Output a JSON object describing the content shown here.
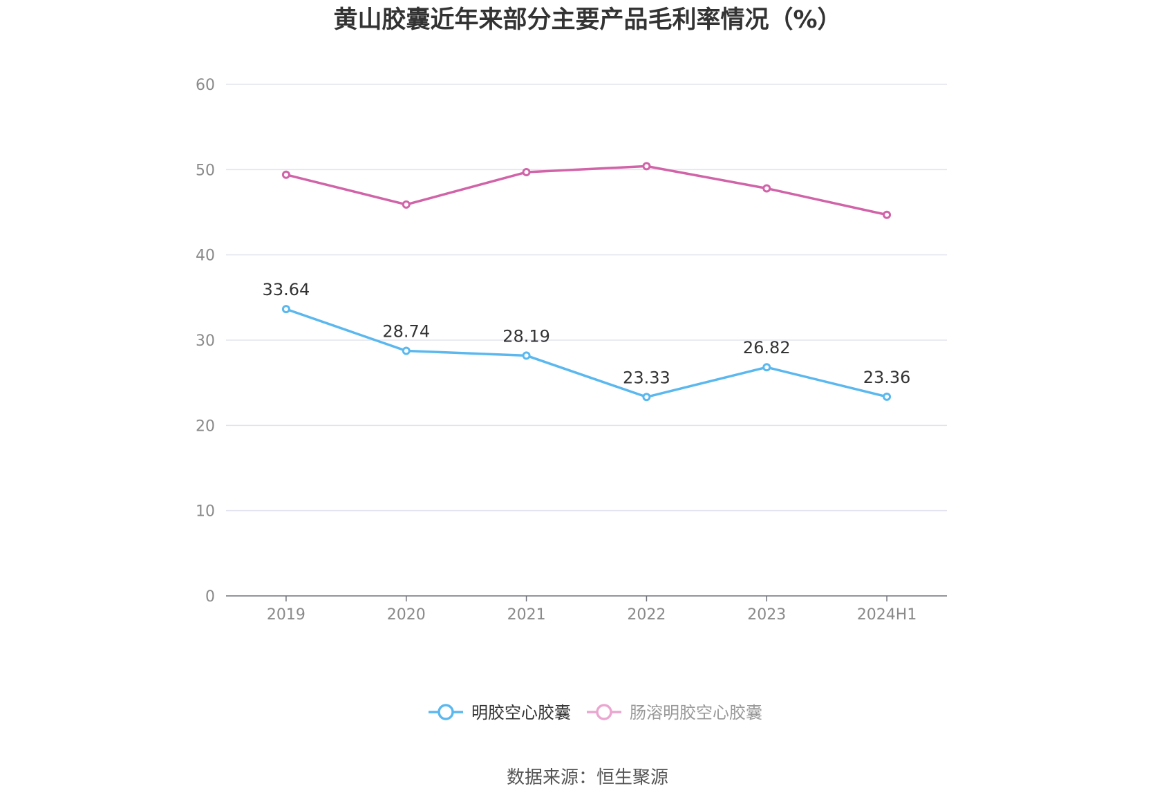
{
  "chart_data": {
    "type": "line",
    "title": "黄山胶囊近年来部分主要产品毛利率情况（%）",
    "categories": [
      "2019",
      "2020",
      "2021",
      "2022",
      "2023",
      "2024H1"
    ],
    "ylim": [
      0,
      60
    ],
    "yticks": [
      0,
      10,
      20,
      30,
      40,
      50,
      60
    ],
    "grid": true,
    "legend_position": "bottom-center",
    "series": [
      {
        "name": "明胶空心胶囊",
        "color": "#5ab8ef",
        "values": [
          33.64,
          28.74,
          28.19,
          23.33,
          26.82,
          23.36
        ],
        "show_labels": true,
        "active": true
      },
      {
        "name": "肠溶明胶空心胶囊",
        "color": "#d163a8",
        "legend_color": "#eaa6d0",
        "values": [
          49.4,
          45.9,
          49.7,
          50.4,
          47.8,
          44.7
        ],
        "show_labels": false,
        "active": false
      }
    ],
    "colors": {
      "grid": "#e3e3ef",
      "axis": "#6e7079",
      "legend_inactive_text": "#999999",
      "legend_active_text": "#333333"
    }
  },
  "source": "数据来源：恒生聚源"
}
